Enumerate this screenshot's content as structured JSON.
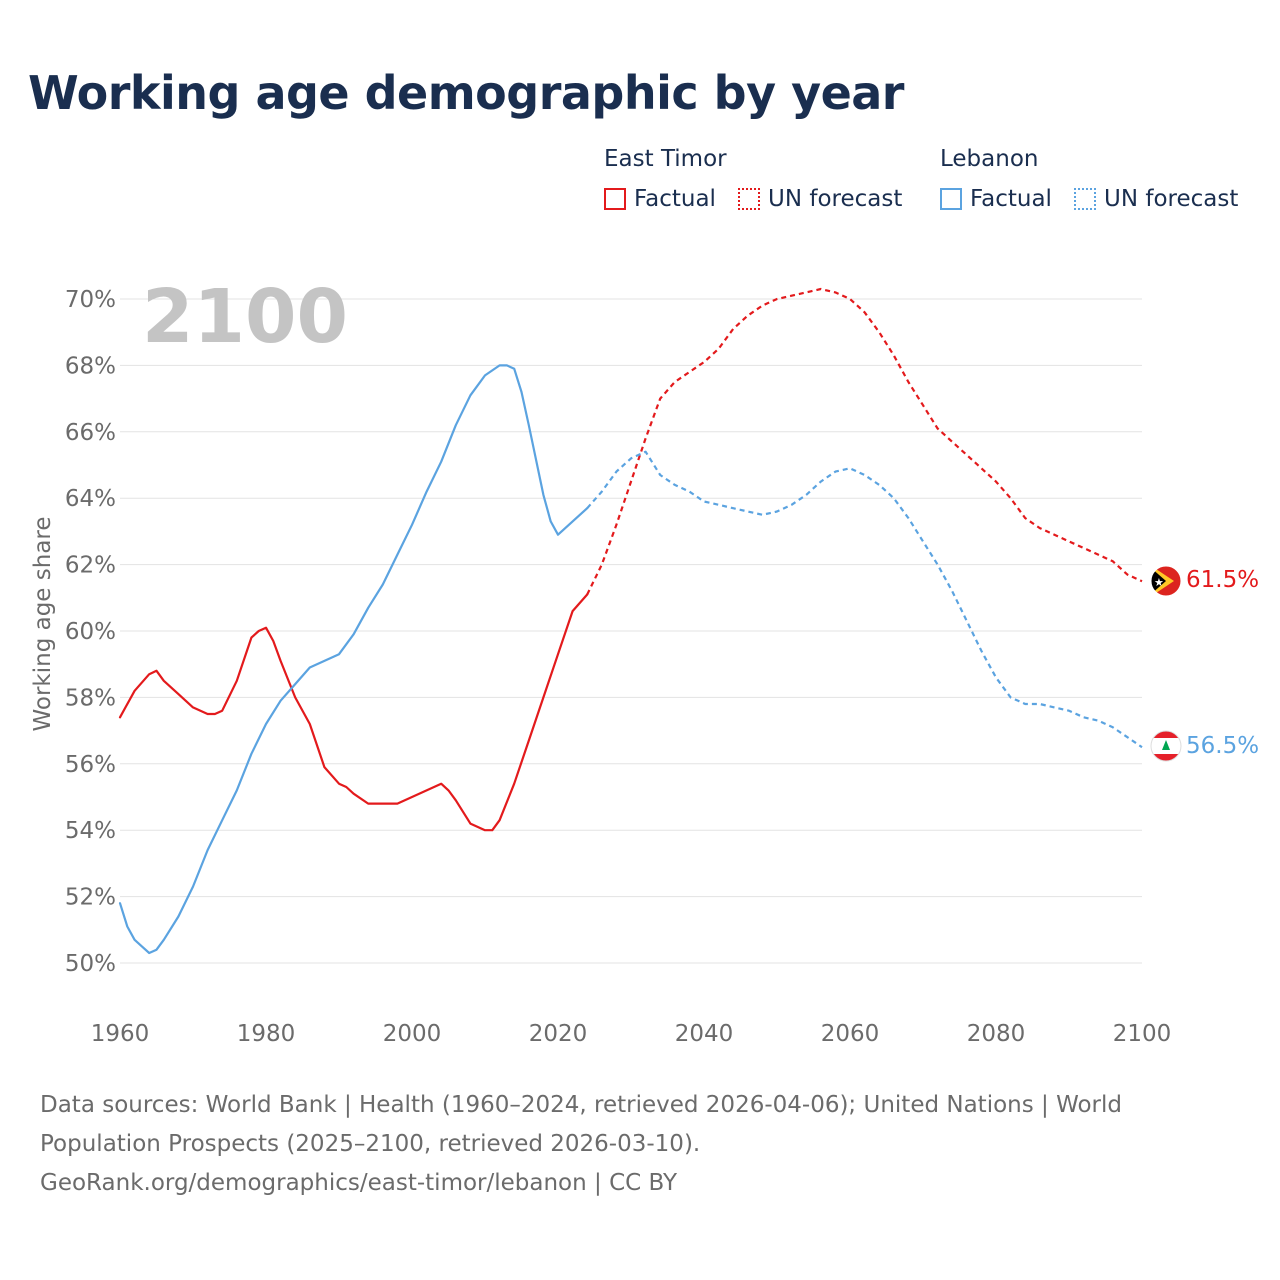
{
  "title": "Working age demographic by year",
  "legend": {
    "groups": [
      {
        "name": "East Timor",
        "color": "#e31a1c",
        "factual_label": "Factual",
        "forecast_label": "UN forecast"
      },
      {
        "name": "Lebanon",
        "color": "#5ba3e0",
        "factual_label": "Factual",
        "forecast_label": "UN forecast"
      }
    ]
  },
  "chart_data": {
    "type": "line",
    "year_watermark": "2100",
    "ylabel": "Working age share",
    "xlim": [
      1960,
      2100
    ],
    "ylim": [
      50,
      70
    ],
    "y_ticks": [
      50,
      52,
      54,
      56,
      58,
      60,
      62,
      64,
      66,
      68,
      70
    ],
    "y_tick_labels": [
      "50%",
      "52%",
      "54%",
      "56%",
      "58%",
      "60%",
      "62%",
      "64%",
      "66%",
      "68%",
      "70%"
    ],
    "x_ticks": [
      1960,
      1980,
      2000,
      2020,
      2040,
      2060,
      2080,
      2100
    ],
    "x_tick_labels": [
      "1960",
      "1980",
      "2000",
      "2020",
      "2040",
      "2060",
      "2080",
      "2100"
    ],
    "series": [
      {
        "name": "East Timor",
        "color": "#e31a1c",
        "end_label": "61.5%",
        "factual": {
          "x": [
            1960,
            1962,
            1964,
            1965,
            1966,
            1968,
            1970,
            1972,
            1973,
            1974,
            1976,
            1978,
            1979,
            1980,
            1981,
            1982,
            1984,
            1986,
            1988,
            1990,
            1991,
            1992,
            1994,
            1996,
            1998,
            2000,
            2002,
            2004,
            2005,
            2006,
            2008,
            2010,
            2011,
            2012,
            2014,
            2016,
            2018,
            2020,
            2022,
            2024
          ],
          "y": [
            57.4,
            58.2,
            58.7,
            58.8,
            58.5,
            58.1,
            57.7,
            57.5,
            57.5,
            57.6,
            58.5,
            59.8,
            60.0,
            60.1,
            59.7,
            59.1,
            58.0,
            57.2,
            55.9,
            55.4,
            55.3,
            55.1,
            54.8,
            54.8,
            54.8,
            55.0,
            55.2,
            55.4,
            55.2,
            54.9,
            54.2,
            54.0,
            54.0,
            54.3,
            55.4,
            56.7,
            58.0,
            59.3,
            60.6,
            61.1
          ]
        },
        "forecast": {
          "x": [
            2024,
            2026,
            2028,
            2030,
            2032,
            2034,
            2036,
            2038,
            2040,
            2042,
            2044,
            2046,
            2048,
            2050,
            2052,
            2054,
            2056,
            2058,
            2060,
            2062,
            2064,
            2066,
            2068,
            2070,
            2072,
            2074,
            2076,
            2078,
            2080,
            2082,
            2084,
            2086,
            2088,
            2090,
            2092,
            2094,
            2096,
            2098,
            2100
          ],
          "y": [
            61.1,
            62.0,
            63.2,
            64.5,
            65.8,
            67.0,
            67.5,
            67.8,
            68.1,
            68.5,
            69.1,
            69.5,
            69.8,
            70.0,
            70.1,
            70.2,
            70.3,
            70.2,
            70.0,
            69.6,
            69.0,
            68.3,
            67.5,
            66.8,
            66.1,
            65.7,
            65.3,
            64.9,
            64.5,
            64.0,
            63.4,
            63.1,
            62.9,
            62.7,
            62.5,
            62.3,
            62.1,
            61.7,
            61.5
          ]
        }
      },
      {
        "name": "Lebanon",
        "color": "#5ba3e0",
        "end_label": "56.5%",
        "factual": {
          "x": [
            1960,
            1961,
            1962,
            1963,
            1964,
            1965,
            1966,
            1968,
            1970,
            1972,
            1974,
            1976,
            1978,
            1980,
            1982,
            1984,
            1986,
            1988,
            1990,
            1992,
            1994,
            1996,
            1998,
            2000,
            2002,
            2004,
            2006,
            2008,
            2010,
            2012,
            2013,
            2014,
            2015,
            2016,
            2018,
            2019,
            2020,
            2022,
            2024
          ],
          "y": [
            51.8,
            51.1,
            50.7,
            50.5,
            50.3,
            50.4,
            50.7,
            51.4,
            52.3,
            53.4,
            54.3,
            55.2,
            56.3,
            57.2,
            57.9,
            58.4,
            58.9,
            59.1,
            59.3,
            59.9,
            60.7,
            61.4,
            62.3,
            63.2,
            64.2,
            65.1,
            66.2,
            67.1,
            67.7,
            68.0,
            68.0,
            67.9,
            67.2,
            66.2,
            64.1,
            63.3,
            62.9,
            63.3,
            63.7
          ]
        },
        "forecast": {
          "x": [
            2024,
            2026,
            2028,
            2030,
            2032,
            2034,
            2036,
            2038,
            2040,
            2042,
            2044,
            2046,
            2048,
            2050,
            2052,
            2054,
            2056,
            2058,
            2060,
            2062,
            2064,
            2066,
            2068,
            2070,
            2072,
            2074,
            2076,
            2078,
            2080,
            2082,
            2084,
            2086,
            2088,
            2090,
            2092,
            2094,
            2096,
            2098,
            2100
          ],
          "y": [
            63.7,
            64.2,
            64.8,
            65.2,
            65.4,
            64.7,
            64.4,
            64.2,
            63.9,
            63.8,
            63.7,
            63.6,
            63.5,
            63.6,
            63.8,
            64.1,
            64.5,
            64.8,
            64.9,
            64.7,
            64.4,
            64.0,
            63.4,
            62.7,
            62.0,
            61.2,
            60.3,
            59.4,
            58.6,
            58.0,
            57.8,
            57.8,
            57.7,
            57.6,
            57.4,
            57.3,
            57.1,
            56.8,
            56.5
          ]
        }
      }
    ]
  },
  "source": {
    "line1": "Data sources: World Bank | Health (1960–2024, retrieved 2026-04-06); United Nations | World",
    "line2": "Population Prospects (2025–2100, retrieved 2026-03-10).",
    "line3": "GeoRank.org/demographics/east-timor/lebanon | CC BY"
  }
}
